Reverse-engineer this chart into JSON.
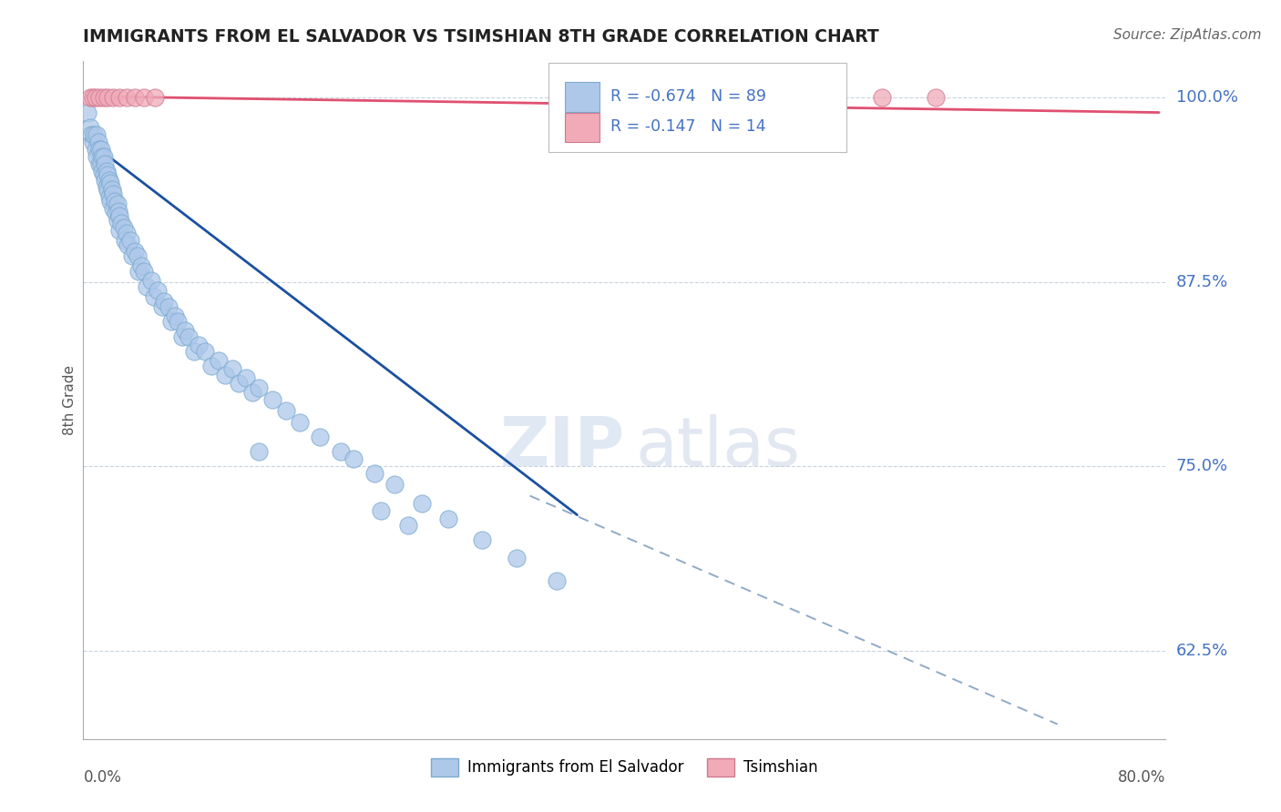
{
  "title": "IMMIGRANTS FROM EL SALVADOR VS TSIMSHIAN 8TH GRADE CORRELATION CHART",
  "source": "Source: ZipAtlas.com",
  "ylabel": "8th Grade",
  "yticks": [
    0.625,
    0.75,
    0.875,
    1.0
  ],
  "ytick_labels": [
    "62.5%",
    "75.0%",
    "87.5%",
    "100.0%"
  ],
  "xlim": [
    0.0,
    0.8
  ],
  "ylim": [
    0.565,
    1.025
  ],
  "legend_blue_r": "R = -0.674",
  "legend_blue_n": "N = 89",
  "legend_pink_r": "R = -0.147",
  "legend_pink_n": "N = 14",
  "blue_scatter_color": "#aec8ea",
  "blue_scatter_edge": "#7aaad0",
  "pink_scatter_color": "#f0aab8",
  "pink_scatter_edge": "#d07890",
  "blue_line_color": "#1a50a0",
  "pink_line_color": "#e05070",
  "dashed_line_color": "#90aac8",
  "watermark_zip": "ZIP",
  "watermark_atlas": "atlas",
  "blue_points_x": [
    0.003,
    0.005,
    0.006,
    0.007,
    0.008,
    0.009,
    0.01,
    0.01,
    0.011,
    0.012,
    0.012,
    0.013,
    0.013,
    0.014,
    0.014,
    0.015,
    0.015,
    0.016,
    0.016,
    0.017,
    0.017,
    0.018,
    0.018,
    0.019,
    0.019,
    0.02,
    0.02,
    0.021,
    0.022,
    0.022,
    0.023,
    0.024,
    0.025,
    0.025,
    0.026,
    0.027,
    0.027,
    0.028,
    0.03,
    0.031,
    0.032,
    0.033,
    0.035,
    0.036,
    0.038,
    0.04,
    0.041,
    0.043,
    0.045,
    0.047,
    0.05,
    0.052,
    0.055,
    0.058,
    0.06,
    0.063,
    0.065,
    0.068,
    0.07,
    0.073,
    0.075,
    0.078,
    0.082,
    0.085,
    0.09,
    0.095,
    0.1,
    0.105,
    0.11,
    0.115,
    0.12,
    0.125,
    0.13,
    0.14,
    0.15,
    0.16,
    0.175,
    0.19,
    0.2,
    0.215,
    0.23,
    0.25,
    0.27,
    0.295,
    0.32,
    0.35,
    0.22,
    0.24,
    0.13
  ],
  "blue_points_y": [
    0.99,
    0.98,
    0.975,
    0.97,
    0.975,
    0.965,
    0.975,
    0.96,
    0.97,
    0.965,
    0.955,
    0.965,
    0.955,
    0.96,
    0.95,
    0.96,
    0.948,
    0.955,
    0.944,
    0.95,
    0.94,
    0.948,
    0.937,
    0.944,
    0.933,
    0.942,
    0.93,
    0.938,
    0.935,
    0.925,
    0.93,
    0.922,
    0.928,
    0.917,
    0.923,
    0.92,
    0.91,
    0.915,
    0.912,
    0.903,
    0.908,
    0.9,
    0.903,
    0.893,
    0.896,
    0.893,
    0.882,
    0.886,
    0.882,
    0.872,
    0.876,
    0.865,
    0.869,
    0.858,
    0.862,
    0.858,
    0.848,
    0.852,
    0.848,
    0.838,
    0.842,
    0.838,
    0.828,
    0.832,
    0.828,
    0.818,
    0.822,
    0.812,
    0.816,
    0.806,
    0.81,
    0.8,
    0.803,
    0.795,
    0.788,
    0.78,
    0.77,
    0.76,
    0.755,
    0.745,
    0.738,
    0.725,
    0.714,
    0.7,
    0.688,
    0.672,
    0.72,
    0.71,
    0.76
  ],
  "pink_points_x": [
    0.005,
    0.007,
    0.009,
    0.012,
    0.015,
    0.018,
    0.022,
    0.027,
    0.032,
    0.038,
    0.045,
    0.053,
    0.59,
    0.63
  ],
  "pink_points_y": [
    1.0,
    1.0,
    1.0,
    1.0,
    1.0,
    1.0,
    1.0,
    1.0,
    1.0,
    1.0,
    1.0,
    1.0,
    1.0,
    1.0
  ],
  "blue_trendline_x": [
    0.002,
    0.365
  ],
  "blue_trendline_y": [
    0.972,
    0.717
  ],
  "dashed_line_x": [
    0.33,
    0.72
  ],
  "dashed_line_y": [
    0.73,
    0.575
  ],
  "pink_trendline_x": [
    0.002,
    0.795
  ],
  "pink_trendline_y": [
    1.001,
    0.99
  ]
}
